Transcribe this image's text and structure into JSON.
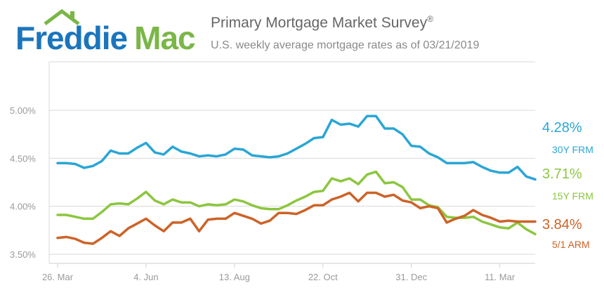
{
  "header": {
    "logo_left": "Freddie",
    "logo_right": "Mac",
    "title": "Primary Mortgage Market Survey",
    "title_mark": "®",
    "subtitle": "U.S. weekly average mortgage rates as of 03/21/2019"
  },
  "colors": {
    "frm30": "#2aa6d5",
    "frm15": "#8cc63f",
    "arm51": "#cc6328",
    "logo_blue": "#1b75bc",
    "logo_green": "#7ab648",
    "axis_text": "#9a9a9a",
    "grid": "#d9d9d9"
  },
  "chart_data": {
    "type": "line",
    "ylim": [
      3.5,
      5.0
    ],
    "yticks": [
      "5.00%",
      "4.50%",
      "4.00%",
      "3.50%"
    ],
    "ytick_values": [
      5.0,
      4.5,
      4.0,
      3.5
    ],
    "xticks": [
      "26. Mar",
      "4. Jun",
      "13. Aug",
      "22. Oct",
      "31. Dec",
      "11. Mar"
    ],
    "xtick_week_index": [
      0,
      10,
      20,
      30,
      40,
      50
    ],
    "weeks": 52,
    "grid": true,
    "legend": "right-end labels",
    "series": [
      {
        "key": "frm30",
        "name": "30Y FRM",
        "last_label": "4.28%",
        "values": [
          4.45,
          4.45,
          4.44,
          4.4,
          4.42,
          4.47,
          4.58,
          4.55,
          4.55,
          4.61,
          4.66,
          4.56,
          4.54,
          4.62,
          4.57,
          4.55,
          4.52,
          4.53,
          4.52,
          4.54,
          4.6,
          4.59,
          4.53,
          4.52,
          4.51,
          4.52,
          4.55,
          4.6,
          4.65,
          4.71,
          4.72,
          4.9,
          4.85,
          4.86,
          4.83,
          4.94,
          4.94,
          4.81,
          4.81,
          4.75,
          4.63,
          4.62,
          4.55,
          4.51,
          4.45,
          4.45,
          4.45,
          4.46,
          4.41,
          4.37,
          4.35,
          4.35,
          4.41,
          4.31,
          4.28
        ]
      },
      {
        "key": "frm15",
        "name": "15Y FRM",
        "last_label": "3.71%",
        "values": [
          3.91,
          3.91,
          3.89,
          3.87,
          3.87,
          3.94,
          4.02,
          4.03,
          4.02,
          4.08,
          4.15,
          4.06,
          4.02,
          4.07,
          4.04,
          4.04,
          4.0,
          4.02,
          4.01,
          4.02,
          4.07,
          4.05,
          4.01,
          3.98,
          3.97,
          3.97,
          4.01,
          4.06,
          4.1,
          4.15,
          4.16,
          4.29,
          4.26,
          4.29,
          4.23,
          4.33,
          4.36,
          4.24,
          4.25,
          4.2,
          4.07,
          4.07,
          4.01,
          3.99,
          3.89,
          3.88,
          3.88,
          3.89,
          3.84,
          3.81,
          3.78,
          3.77,
          3.83,
          3.76,
          3.71
        ]
      },
      {
        "key": "arm51",
        "name": "5/1 ARM",
        "last_label": "3.84%",
        "values": [
          3.67,
          3.68,
          3.66,
          3.62,
          3.61,
          3.67,
          3.74,
          3.69,
          3.77,
          3.82,
          3.87,
          3.8,
          3.74,
          3.83,
          3.83,
          3.87,
          3.74,
          3.86,
          3.87,
          3.87,
          3.93,
          3.9,
          3.87,
          3.82,
          3.85,
          3.93,
          3.93,
          3.92,
          3.96,
          4.01,
          4.01,
          4.07,
          4.1,
          4.14,
          4.05,
          4.14,
          4.14,
          4.1,
          4.12,
          4.06,
          4.04,
          3.98,
          4.0,
          3.98,
          3.83,
          3.87,
          3.9,
          3.96,
          3.91,
          3.88,
          3.84,
          3.85,
          3.84,
          3.84,
          3.84
        ]
      }
    ]
  }
}
